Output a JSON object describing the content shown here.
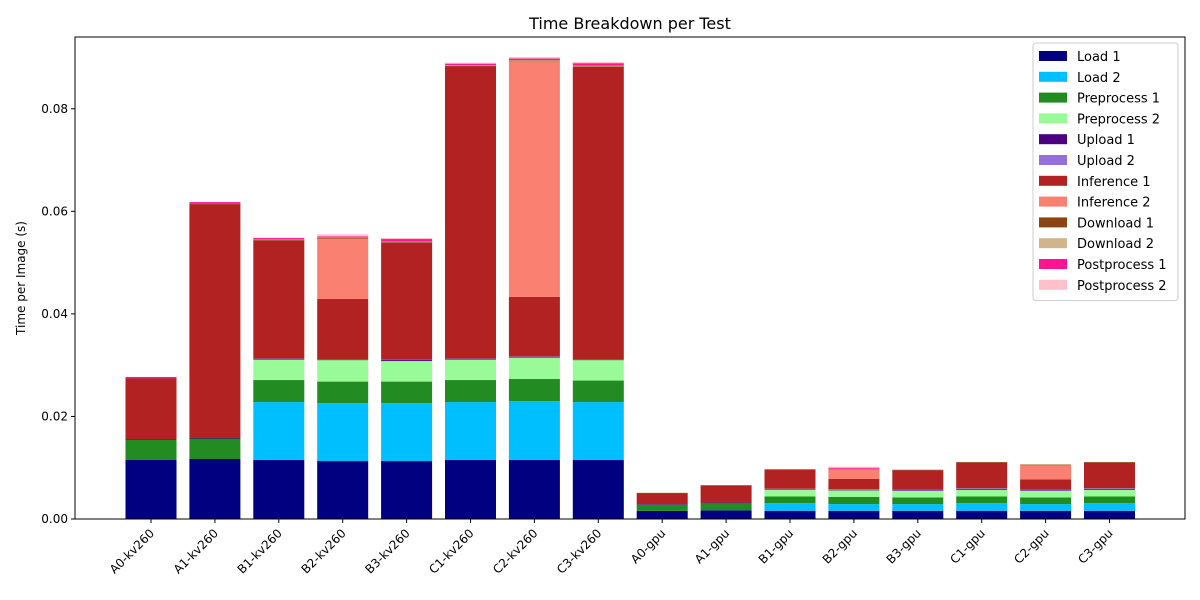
{
  "chart_data": {
    "type": "bar",
    "stacked": true,
    "title": "Time Breakdown per Test",
    "xlabel": "",
    "ylabel": "Time per Image (s)",
    "ylim": [
      0,
      0.094
    ],
    "yticks": [
      "0.00",
      "0.02",
      "0.04",
      "0.06",
      "0.08"
    ],
    "ytick_values": [
      0,
      0.02,
      0.04,
      0.06,
      0.08
    ],
    "grid": false,
    "legend_position": "top-right",
    "categories": [
      "A0-kv260",
      "A1-kv260",
      "B1-kv260",
      "B2-kv260",
      "B3-kv260",
      "C1-kv260",
      "C2-kv260",
      "C3-kv260",
      "A0-gpu",
      "A1-gpu",
      "B1-gpu",
      "B2-gpu",
      "B3-gpu",
      "C1-gpu",
      "C2-gpu",
      "C3-gpu"
    ],
    "series": [
      {
        "name": "Load 1",
        "color": "#000080",
        "values": [
          0.0115,
          0.0117,
          0.0115,
          0.0113,
          0.0113,
          0.0115,
          0.0115,
          0.0115,
          0.0016,
          0.0017,
          0.0016,
          0.0016,
          0.0016,
          0.0016,
          0.0016,
          0.0016
        ]
      },
      {
        "name": "Load 2",
        "color": "#00bfff",
        "values": [
          0,
          0,
          0.0113,
          0.0113,
          0.0113,
          0.0113,
          0.0115,
          0.0113,
          0,
          0,
          0.0015,
          0.0013,
          0.0013,
          0.0015,
          0.0013,
          0.0015
        ]
      },
      {
        "name": "Preprocess 1",
        "color": "#228b22",
        "values": [
          0.004,
          0.004,
          0.0043,
          0.0042,
          0.0042,
          0.0043,
          0.0043,
          0.0042,
          0.0012,
          0.0014,
          0.0013,
          0.0014,
          0.0013,
          0.0013,
          0.0013,
          0.0013
        ]
      },
      {
        "name": "Preprocess 2",
        "color": "#98fb98",
        "values": [
          0,
          0,
          0.004,
          0.0042,
          0.004,
          0.004,
          0.0042,
          0.004,
          0,
          0,
          0.0013,
          0.0013,
          0.0013,
          0.0013,
          0.0013,
          0.0013
        ]
      },
      {
        "name": "Upload 1",
        "color": "#4b0082",
        "values": [
          0.0001,
          0.0001,
          0.0001,
          0.0001,
          0.0002,
          0.0001,
          0.0001,
          0.0001,
          0.0001,
          0.0001,
          0.0001,
          0.0001,
          0.0001,
          0.0002,
          0.0001,
          0.0002
        ]
      },
      {
        "name": "Upload 2",
        "color": "#9370db",
        "values": [
          0,
          0,
          0.0001,
          0.0001,
          0.0001,
          0.0001,
          0.0001,
          0.0001,
          0,
          0,
          0.0001,
          0.0001,
          0.0001,
          0.0001,
          0.0001,
          0.0001
        ]
      },
      {
        "name": "Inference 1",
        "color": "#b22222",
        "values": [
          0.0117,
          0.0456,
          0.023,
          0.0117,
          0.0228,
          0.057,
          0.0116,
          0.057,
          0.0021,
          0.0033,
          0.0037,
          0.002,
          0.0038,
          0.005,
          0.002,
          0.005
        ]
      },
      {
        "name": "Inference 2",
        "color": "#fa8072",
        "values": [
          0,
          0,
          0,
          0.0118,
          0,
          0,
          0.046,
          0,
          0,
          0,
          0,
          0.0018,
          0,
          0,
          0.0028,
          0
        ]
      },
      {
        "name": "Download 1",
        "color": "#8b4513",
        "values": [
          0.0001,
          0.0001,
          0.0001,
          0.0001,
          0.0001,
          0.0001,
          0.0001,
          0.0001,
          0.0001,
          0.0001,
          0.0001,
          0.0001,
          0.0001,
          0.0001,
          0.0001,
          0.0001
        ]
      },
      {
        "name": "Download 2",
        "color": "#d2b48c",
        "values": [
          0,
          0,
          0.0001,
          0.0001,
          0.0001,
          0.0001,
          0.0001,
          0.0001,
          0,
          0,
          0,
          0.0001,
          0,
          0,
          0.0001,
          0
        ]
      },
      {
        "name": "Postprocess 1",
        "color": "#ff1493",
        "values": [
          0.0003,
          0.0003,
          0.0003,
          0.0002,
          0.0005,
          0.0003,
          0.0003,
          0.0005,
          0,
          0,
          0,
          0.0002,
          0,
          0,
          0,
          0
        ]
      },
      {
        "name": "Postprocess 2",
        "color": "#ffc0cb",
        "values": [
          0,
          0,
          0.0001,
          0.0004,
          0.0002,
          0.0002,
          0.0003,
          0.0002,
          0,
          0,
          0,
          0.0002,
          0,
          0,
          0,
          0
        ]
      }
    ]
  }
}
